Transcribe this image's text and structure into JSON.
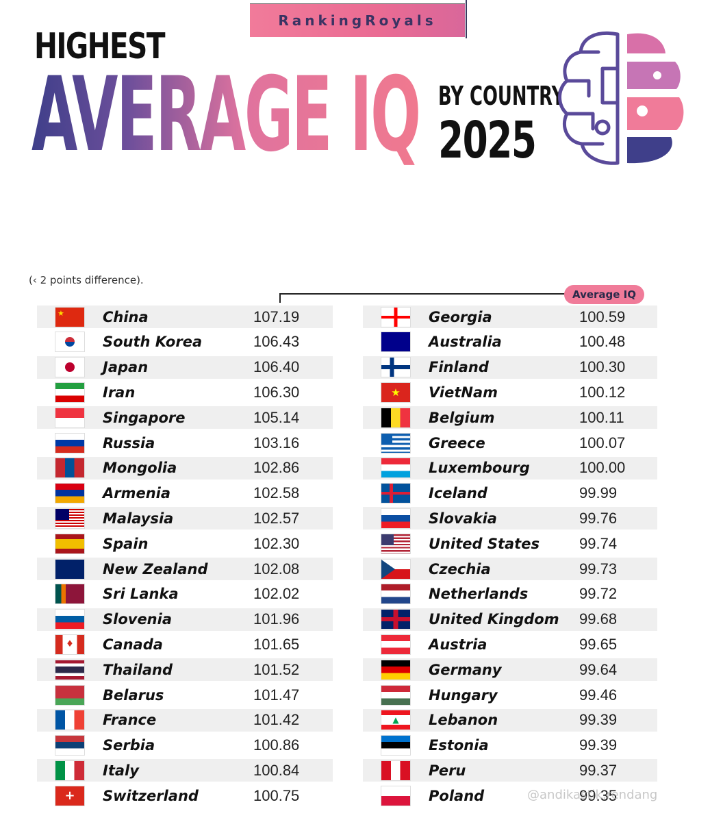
{
  "header": {
    "brand": "RankingRoyals",
    "highest": "HIGHEST",
    "average_iq": "AVERAGE IQ",
    "by_country": "BY COUNTRY",
    "year": "2025"
  },
  "note": "(‹ 2 points difference).",
  "legend_label": "Average IQ",
  "colors": {
    "accent_pink": "#f07b99",
    "navy": "#3f3f8a",
    "purple": "#6e4f9b"
  },
  "left_column": [
    {
      "country": "China",
      "iq": "107.19",
      "flag": "china-flag"
    },
    {
      "country": "South Korea",
      "iq": "106.43",
      "flag": "south-korea-flag"
    },
    {
      "country": "Japan",
      "iq": "106.40",
      "flag": "japan-flag"
    },
    {
      "country": "Iran",
      "iq": "106.30",
      "flag": "iran-flag"
    },
    {
      "country": "Singapore",
      "iq": "105.14",
      "flag": "singapore-flag"
    },
    {
      "country": "Russia",
      "iq": "103.16",
      "flag": "russia-flag"
    },
    {
      "country": "Mongolia",
      "iq": "102.86",
      "flag": "mongolia-flag"
    },
    {
      "country": "Armenia",
      "iq": "102.58",
      "flag": "armenia-flag"
    },
    {
      "country": "Malaysia",
      "iq": "102.57",
      "flag": "malaysia-flag"
    },
    {
      "country": "Spain",
      "iq": "102.30",
      "flag": "spain-flag"
    },
    {
      "country": "New Zealand",
      "iq": "102.08",
      "flag": "new-zealand-flag"
    },
    {
      "country": "Sri Lanka",
      "iq": "102.02",
      "flag": "sri-lanka-flag"
    },
    {
      "country": "Slovenia",
      "iq": "101.96",
      "flag": "slovenia-flag"
    },
    {
      "country": "Canada",
      "iq": "101.65",
      "flag": "canada-flag"
    },
    {
      "country": "Thailand",
      "iq": "101.52",
      "flag": "thailand-flag"
    },
    {
      "country": "Belarus",
      "iq": "101.47",
      "flag": "belarus-flag"
    },
    {
      "country": "France",
      "iq": "101.42",
      "flag": "france-flag"
    },
    {
      "country": "Serbia",
      "iq": "100.86",
      "flag": "serbia-flag"
    },
    {
      "country": "Italy",
      "iq": "100.84",
      "flag": "italy-flag"
    },
    {
      "country": "Switzerland",
      "iq": "100.75",
      "flag": "switzerland-flag"
    }
  ],
  "right_column": [
    {
      "country": "Georgia",
      "iq": "100.59",
      "flag": "georgia-flag"
    },
    {
      "country": "Australia",
      "iq": "100.48",
      "flag": "australia-flag"
    },
    {
      "country": "Finland",
      "iq": "100.30",
      "flag": "finland-flag"
    },
    {
      "country": "VietNam",
      "iq": "100.12",
      "flag": "vietnam-flag"
    },
    {
      "country": "Belgium",
      "iq": "100.11",
      "flag": "belgium-flag"
    },
    {
      "country": "Greece",
      "iq": "100.07",
      "flag": "greece-flag"
    },
    {
      "country": "Luxembourg",
      "iq": "100.00",
      "flag": "luxembourg-flag"
    },
    {
      "country": "Iceland",
      "iq": "99.99",
      "flag": "iceland-flag"
    },
    {
      "country": "Slovakia",
      "iq": "99.76",
      "flag": "slovakia-flag"
    },
    {
      "country": "United States",
      "iq": "99.74",
      "flag": "united-states-flag"
    },
    {
      "country": "Czechia",
      "iq": "99.73",
      "flag": "czechia-flag"
    },
    {
      "country": "Netherlands",
      "iq": "99.72",
      "flag": "netherlands-flag"
    },
    {
      "country": "United Kingdom",
      "iq": "99.68",
      "flag": "united-kingdom-flag"
    },
    {
      "country": "Austria",
      "iq": "99.65",
      "flag": "austria-flag"
    },
    {
      "country": "Germany",
      "iq": "99.64",
      "flag": "germany-flag"
    },
    {
      "country": "Hungary",
      "iq": "99.46",
      "flag": "hungary-flag"
    },
    {
      "country": "Lebanon",
      "iq": "99.39",
      "flag": "lebanon-flag"
    },
    {
      "country": "Estonia",
      "iq": "99.39",
      "flag": "estonia-flag"
    },
    {
      "country": "Peru",
      "iq": "99.37",
      "flag": "peru-flag"
    },
    {
      "country": "Poland",
      "iq": "99.35",
      "flag": "poland-flag"
    }
  ],
  "watermark": "@andikastik.rendang"
}
